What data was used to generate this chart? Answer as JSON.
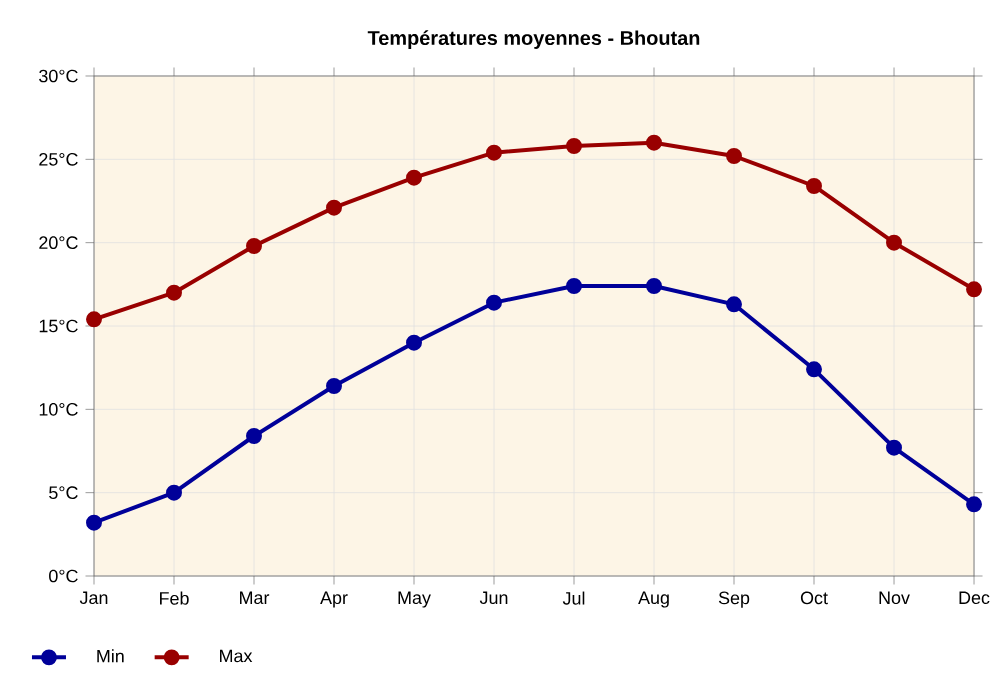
{
  "chart_data": {
    "type": "line",
    "title": "Températures moyennes - Bhoutan",
    "categories": [
      "Jan",
      "Feb",
      "Mar",
      "Apr",
      "May",
      "Jun",
      "Jul",
      "Aug",
      "Sep",
      "Oct",
      "Nov",
      "Dec"
    ],
    "series": [
      {
        "name": "Min",
        "color": "#000099",
        "values": [
          3.2,
          5.0,
          8.4,
          11.4,
          14.0,
          16.4,
          17.4,
          17.4,
          16.3,
          12.4,
          7.7,
          4.3
        ]
      },
      {
        "name": "Max",
        "color": "#990000",
        "values": [
          15.4,
          17.0,
          19.8,
          22.1,
          23.9,
          25.4,
          25.8,
          26.0,
          25.2,
          23.4,
          20.0,
          17.2
        ]
      }
    ],
    "ylim": [
      0,
      30
    ],
    "yticks": [
      {
        "value": 0,
        "label": "0°C"
      },
      {
        "value": 5,
        "label": "5°C"
      },
      {
        "value": 10,
        "label": "10°C"
      },
      {
        "value": 15,
        "label": "15°C"
      },
      {
        "value": 20,
        "label": "20°C"
      },
      {
        "value": 25,
        "label": "25°C"
      },
      {
        "value": 30,
        "label": "30°C"
      }
    ],
    "grid": true,
    "legend": "bottom left",
    "marker": "circle",
    "line_style": "solid"
  }
}
